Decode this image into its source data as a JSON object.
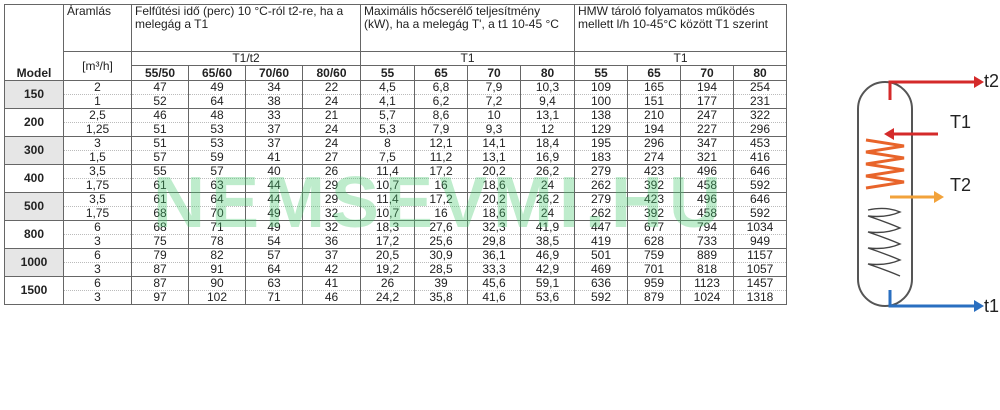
{
  "table": {
    "headers": {
      "model": "Model",
      "aramlas": "Áramlás",
      "unit": "[m³/h]",
      "group1": "Felfűtési idő (perc) 10 °C-ról t2-re, ha a melegág a T1",
      "group2": "Maximális hőcserélő teljesítmény (kW), ha a melegág T', a t1 10-45 °C",
      "group3": "HMW tároló folyamatos működés mellett l/h 10-45°C között T1  szerint",
      "sub1": "T1/t2",
      "sub2": "T1",
      "sub3": "T1",
      "cols1": [
        "55/50",
        "65/60",
        "70/60",
        "80/60"
      ],
      "cols2": [
        "55",
        "65",
        "70",
        "80"
      ],
      "cols3": [
        "55",
        "65",
        "70",
        "80"
      ]
    },
    "models": [
      {
        "model": "150",
        "rows": [
          [
            "2",
            "47",
            "49",
            "34",
            "22",
            "4,5",
            "6,8",
            "7,9",
            "10,3",
            "109",
            "165",
            "194",
            "254"
          ],
          [
            "1",
            "52",
            "64",
            "38",
            "24",
            "4,1",
            "6,2",
            "7,2",
            "9,4",
            "100",
            "151",
            "177",
            "231"
          ]
        ]
      },
      {
        "model": "200",
        "rows": [
          [
            "2,5",
            "46",
            "48",
            "33",
            "21",
            "5,7",
            "8,6",
            "10",
            "13,1",
            "138",
            "210",
            "247",
            "322"
          ],
          [
            "1,25",
            "51",
            "53",
            "37",
            "24",
            "5,3",
            "7,9",
            "9,3",
            "12",
            "129",
            "194",
            "227",
            "296"
          ]
        ]
      },
      {
        "model": "300",
        "rows": [
          [
            "3",
            "51",
            "53",
            "37",
            "24",
            "8",
            "12,1",
            "14,1",
            "18,4",
            "195",
            "296",
            "347",
            "453"
          ],
          [
            "1,5",
            "57",
            "59",
            "41",
            "27",
            "7,5",
            "11,2",
            "13,1",
            "16,9",
            "183",
            "274",
            "321",
            "416"
          ]
        ]
      },
      {
        "model": "400",
        "rows": [
          [
            "3,5",
            "55",
            "57",
            "40",
            "26",
            "11,4",
            "17,2",
            "20,2",
            "26,2",
            "279",
            "423",
            "496",
            "646"
          ],
          [
            "1,75",
            "61",
            "63",
            "44",
            "29",
            "10,7",
            "16",
            "18,6",
            "24",
            "262",
            "392",
            "458",
            "592"
          ]
        ]
      },
      {
        "model": "500",
        "rows": [
          [
            "3,5",
            "61",
            "64",
            "44",
            "29",
            "11,4",
            "17,2",
            "20,2",
            "26,2",
            "279",
            "423",
            "496",
            "646"
          ],
          [
            "1,75",
            "68",
            "70",
            "49",
            "32",
            "10,7",
            "16",
            "18,6",
            "24",
            "262",
            "392",
            "458",
            "592"
          ]
        ]
      },
      {
        "model": "800",
        "rows": [
          [
            "6",
            "68",
            "71",
            "49",
            "32",
            "18,3",
            "27,6",
            "32,3",
            "41,9",
            "447",
            "677",
            "794",
            "1034"
          ],
          [
            "3",
            "75",
            "78",
            "54",
            "36",
            "17,2",
            "25,6",
            "29,8",
            "38,5",
            "419",
            "628",
            "733",
            "949"
          ]
        ]
      },
      {
        "model": "1000",
        "rows": [
          [
            "6",
            "79",
            "82",
            "57",
            "37",
            "20,5",
            "30,9",
            "36,1",
            "46,9",
            "501",
            "759",
            "889",
            "1157"
          ],
          [
            "3",
            "87",
            "91",
            "64",
            "42",
            "19,2",
            "28,5",
            "33,3",
            "42,9",
            "469",
            "701",
            "818",
            "1057"
          ]
        ]
      },
      {
        "model": "1500",
        "rows": [
          [
            "6",
            "87",
            "90",
            "63",
            "41",
            "26",
            "39",
            "45,6",
            "59,1",
            "636",
            "959",
            "1123",
            "1457"
          ],
          [
            "3",
            "97",
            "102",
            "71",
            "46",
            "24,2",
            "35,8",
            "41,6",
            "53,6",
            "592",
            "879",
            "1024",
            "1318"
          ]
        ]
      }
    ]
  },
  "watermark": "NEMSEVMI.HU",
  "diagram": {
    "labels": {
      "t2": "t2",
      "T1": "T1",
      "T2": "T2",
      "t1": "t1"
    },
    "colors": {
      "hot": "#d42a2a",
      "warm": "#f2a23a",
      "cold": "#2a6fc0",
      "coil": "#e8642a"
    }
  }
}
